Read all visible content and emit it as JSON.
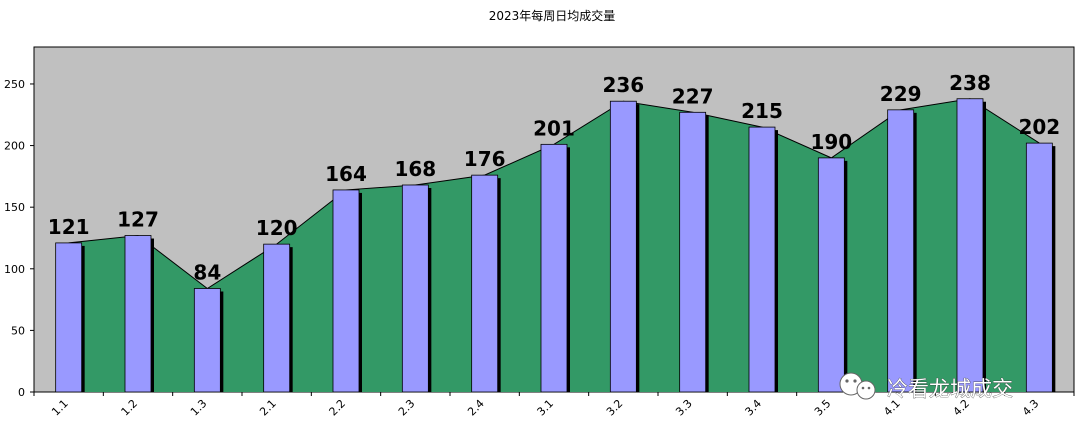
{
  "chart_data": {
    "type": "bar",
    "title": "2023年每周日均成交量",
    "categories": [
      "1.1",
      "1.2",
      "1.3",
      "2.1",
      "2.2",
      "2.3",
      "2.4",
      "3.1",
      "3.2",
      "3.3",
      "3.4",
      "3.5",
      "4.1",
      "4.2",
      "4.3"
    ],
    "series": [
      {
        "values": [
          121,
          127,
          84,
          120,
          164,
          168,
          176,
          201,
          236,
          227,
          215,
          190,
          229,
          238,
          202
        ]
      }
    ],
    "overlay": "area of the same values behind the bars",
    "ylim": [
      0,
      280
    ],
    "yticks": [
      0,
      50,
      100,
      150,
      200,
      250
    ],
    "grid": false,
    "data_labels": true,
    "colors": {
      "plot_bg": "#c0c0c0",
      "area_fill": "#339966",
      "bar_fill": "#9999ff",
      "bar_shadow": "#000000"
    }
  },
  "watermark": {
    "text": "冷看龙城成交",
    "icon": "wechat-icon"
  }
}
